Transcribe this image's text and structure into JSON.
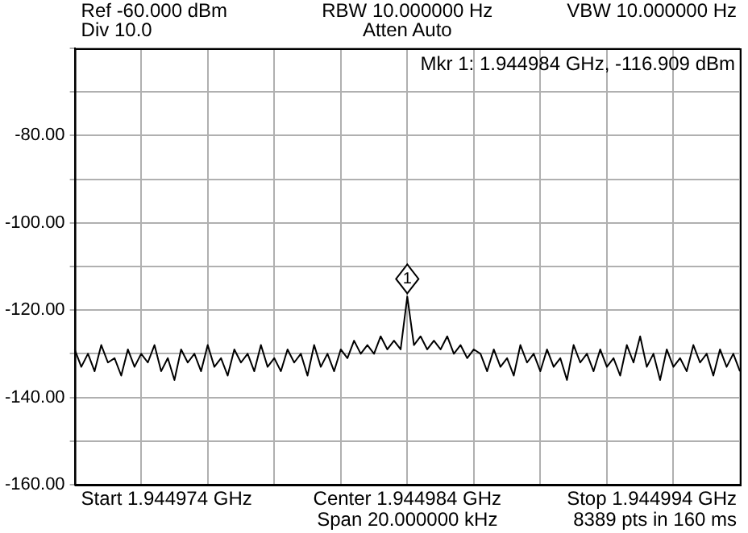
{
  "chart_data": {
    "type": "line",
    "annotations": [
      "Ref -60.000 dBm",
      "Div 10.0",
      "RBW 10.000000 Hz",
      "Atten Auto",
      "VBW 10.000000 Hz",
      "Mkr 1: 1.944984 GHz, -116.909 dBm",
      "Start 1.944974 GHz",
      "Center 1.944984 GHz",
      "Span 20.000000 kHz",
      "Stop 1.944994 GHz",
      "8389 pts in 160 ms",
      {
        "text": "1",
        "y": -116.909
      }
    ],
    "categories": [
      null,
      null,
      null,
      null,
      null,
      null,
      null,
      null,
      null,
      null,
      null,
      null,
      null,
      null,
      null,
      null,
      null,
      null,
      null,
      null,
      null,
      null,
      null,
      null,
      null,
      null,
      null,
      null,
      null,
      null,
      null,
      null,
      null,
      null,
      null,
      null,
      null,
      null,
      null,
      null,
      null,
      null,
      null,
      null,
      null,
      null,
      null,
      null,
      null,
      null,
      null,
      null,
      null,
      null,
      null,
      null,
      null,
      null,
      null,
      null,
      null,
      null,
      null,
      null,
      null,
      null,
      null,
      null,
      null,
      null,
      null,
      null,
      null,
      null,
      null,
      null,
      null,
      null,
      null,
      null,
      null,
      null,
      null,
      null,
      null,
      null,
      null,
      null,
      null,
      null,
      null,
      null,
      null,
      null,
      null,
      null,
      null,
      null,
      null,
      null,
      null
    ],
    "ylim": [
      -160,
      -60
    ],
    "yticks": [
      {
        "value": -60,
        "label": null
      },
      {
        "value": -70,
        "label": null
      },
      {
        "value": -80,
        "label": "-80.00"
      },
      {
        "value": -90,
        "label": null
      },
      {
        "value": -100,
        "label": "-100.00"
      },
      {
        "value": -110,
        "label": null
      },
      {
        "value": -120,
        "label": "-120.00"
      },
      {
        "value": -130,
        "label": null
      },
      {
        "value": -140,
        "label": "-140.00"
      },
      {
        "value": -150,
        "label": null
      },
      {
        "value": -160,
        "label": "-160.00"
      }
    ],
    "tick_labels": "y",
    "grid": true,
    "marker": "none",
    "series": [
      {
        "color": "#000000",
        "values": [
          -129,
          -133,
          -130,
          -134,
          -128,
          -132,
          -131,
          -135,
          -129,
          -133,
          -130,
          -132,
          -128,
          -134,
          -131,
          -136,
          -129,
          -132,
          -130,
          -134,
          -128,
          -133,
          -131,
          -135,
          -129,
          -132,
          -130,
          -134,
          -128,
          -133,
          -131,
          -134,
          -129,
          -132,
          -130,
          -135,
          -128,
          -133,
          -130,
          -134,
          -129,
          -131,
          -127,
          -130,
          -128,
          -130,
          -126,
          -129,
          -127,
          -129,
          -116.909,
          -128,
          -126,
          -129,
          -127,
          -129,
          -126,
          -130,
          -128,
          -131,
          -129,
          -130,
          -134,
          -129,
          -133,
          -131,
          -135,
          -128,
          -132,
          -130,
          -134,
          -129,
          -133,
          -131,
          -136,
          -128,
          -132,
          -130,
          -134,
          -129,
          -133,
          -131,
          -135,
          -128,
          -132,
          -126,
          -133,
          -130,
          -136,
          -129,
          -133,
          -131,
          -134,
          -128,
          -132,
          -130,
          -135,
          -129,
          -133,
          -130,
          -134
        ]
      }
    ]
  }
}
